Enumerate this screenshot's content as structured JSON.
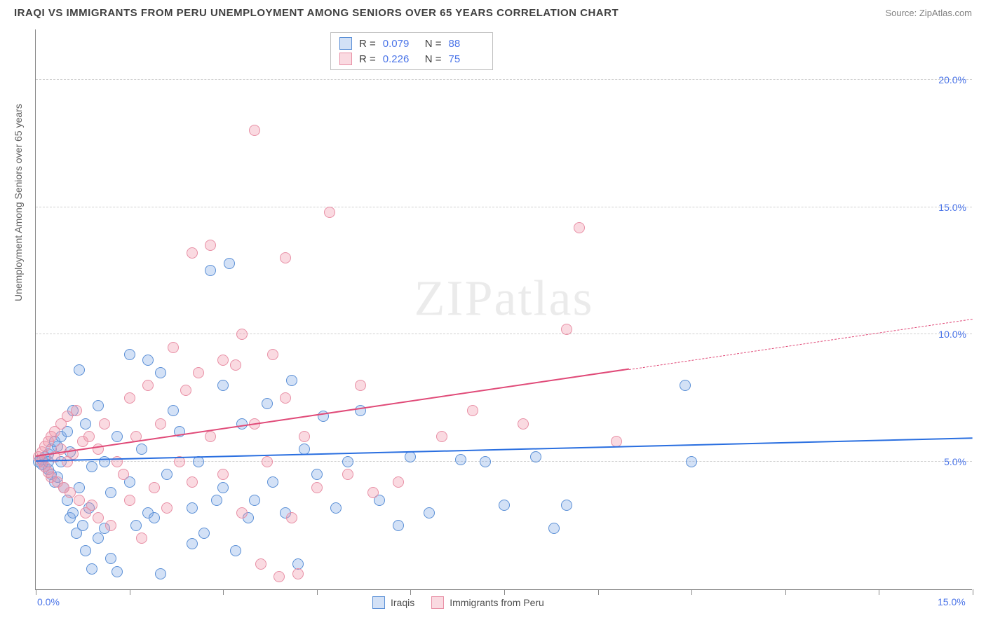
{
  "header": {
    "title": "IRAQI VS IMMIGRANTS FROM PERU UNEMPLOYMENT AMONG SENIORS OVER 65 YEARS CORRELATION CHART",
    "source": "Source: ZipAtlas.com"
  },
  "watermark": {
    "part1": "ZIP",
    "part2": "atlas"
  },
  "chart": {
    "type": "scatter",
    "background_color": "#ffffff",
    "grid_color": "#d0d0d0",
    "axis_color": "#888888",
    "tick_label_color": "#4a74e8",
    "y_axis_title": "Unemployment Among Seniors over 65 years",
    "xlim": [
      0,
      15
    ],
    "ylim": [
      0,
      22
    ],
    "x_ticks": [
      0,
      1.5,
      3,
      4.5,
      6,
      7.5,
      9,
      10.5,
      12,
      13.5,
      15
    ],
    "x_tick_labels": {
      "0": "0.0%",
      "15": "15.0%"
    },
    "y_ticks": [
      5,
      10,
      15,
      20
    ],
    "y_tick_labels": {
      "5": "5.0%",
      "10": "10.0%",
      "15": "15.0%",
      "20": "20.0%"
    },
    "marker_radius": 8,
    "marker_border_width": 1.5,
    "series": [
      {
        "name": "Iraqis",
        "fill_color": "rgba(130,170,230,0.35)",
        "stroke_color": "#5a8fd6",
        "trend_color": "#2a6fe0",
        "r_value": "0.079",
        "n_value": "88",
        "trend": {
          "x1": 0,
          "y1": 5.0,
          "x2": 15,
          "y2": 5.9,
          "solid_until_x": 15
        },
        "points": [
          [
            0.05,
            5.0
          ],
          [
            0.1,
            5.1
          ],
          [
            0.1,
            4.9
          ],
          [
            0.15,
            5.2
          ],
          [
            0.15,
            4.8
          ],
          [
            0.2,
            5.3
          ],
          [
            0.2,
            4.7
          ],
          [
            0.2,
            5.0
          ],
          [
            0.25,
            5.5
          ],
          [
            0.25,
            4.5
          ],
          [
            0.3,
            5.8
          ],
          [
            0.3,
            4.2
          ],
          [
            0.35,
            5.6
          ],
          [
            0.35,
            4.4
          ],
          [
            0.4,
            5.0
          ],
          [
            0.4,
            6.0
          ],
          [
            0.45,
            4.0
          ],
          [
            0.5,
            3.5
          ],
          [
            0.5,
            6.2
          ],
          [
            0.55,
            2.8
          ],
          [
            0.55,
            5.4
          ],
          [
            0.6,
            3.0
          ],
          [
            0.6,
            7.0
          ],
          [
            0.65,
            2.2
          ],
          [
            0.7,
            8.6
          ],
          [
            0.7,
            4.0
          ],
          [
            0.75,
            2.5
          ],
          [
            0.8,
            1.5
          ],
          [
            0.8,
            6.5
          ],
          [
            0.85,
            3.2
          ],
          [
            0.9,
            0.8
          ],
          [
            0.9,
            4.8
          ],
          [
            1.0,
            2.0
          ],
          [
            1.0,
            7.2
          ],
          [
            1.1,
            2.4
          ],
          [
            1.1,
            5.0
          ],
          [
            1.2,
            3.8
          ],
          [
            1.2,
            1.2
          ],
          [
            1.3,
            0.7
          ],
          [
            1.3,
            6.0
          ],
          [
            1.5,
            9.2
          ],
          [
            1.5,
            4.2
          ],
          [
            1.6,
            2.5
          ],
          [
            1.7,
            5.5
          ],
          [
            1.8,
            3.0
          ],
          [
            1.8,
            9.0
          ],
          [
            1.9,
            2.8
          ],
          [
            2.0,
            0.6
          ],
          [
            2.0,
            8.5
          ],
          [
            2.1,
            4.5
          ],
          [
            2.2,
            7.0
          ],
          [
            2.3,
            6.2
          ],
          [
            2.5,
            3.2
          ],
          [
            2.5,
            1.8
          ],
          [
            2.6,
            5.0
          ],
          [
            2.7,
            2.2
          ],
          [
            2.8,
            12.5
          ],
          [
            2.9,
            3.5
          ],
          [
            3.0,
            4.0
          ],
          [
            3.0,
            8.0
          ],
          [
            3.1,
            12.8
          ],
          [
            3.2,
            1.5
          ],
          [
            3.3,
            6.5
          ],
          [
            3.4,
            2.8
          ],
          [
            3.5,
            3.5
          ],
          [
            3.7,
            7.3
          ],
          [
            3.8,
            4.2
          ],
          [
            4.0,
            3.0
          ],
          [
            4.1,
            8.2
          ],
          [
            4.2,
            1.0
          ],
          [
            4.3,
            5.5
          ],
          [
            4.5,
            4.5
          ],
          [
            4.6,
            6.8
          ],
          [
            4.8,
            3.2
          ],
          [
            5.0,
            5.0
          ],
          [
            5.2,
            7.0
          ],
          [
            5.5,
            3.5
          ],
          [
            5.8,
            2.5
          ],
          [
            6.0,
            5.2
          ],
          [
            6.3,
            3.0
          ],
          [
            6.8,
            5.1
          ],
          [
            7.2,
            5.0
          ],
          [
            7.5,
            3.3
          ],
          [
            8.0,
            5.2
          ],
          [
            8.3,
            2.4
          ],
          [
            8.5,
            3.3
          ],
          [
            10.4,
            8.0
          ],
          [
            10.5,
            5.0
          ]
        ]
      },
      {
        "name": "Immigrants from Peru",
        "fill_color": "rgba(240,150,170,0.35)",
        "stroke_color": "#e88fa5",
        "trend_color": "#e04a78",
        "r_value": "0.226",
        "n_value": "75",
        "trend": {
          "x1": 0,
          "y1": 5.2,
          "x2": 15,
          "y2": 10.6,
          "solid_until_x": 9.5
        },
        "points": [
          [
            0.05,
            5.2
          ],
          [
            0.1,
            5.4
          ],
          [
            0.1,
            5.0
          ],
          [
            0.15,
            5.6
          ],
          [
            0.15,
            4.8
          ],
          [
            0.2,
            5.8
          ],
          [
            0.2,
            4.6
          ],
          [
            0.25,
            6.0
          ],
          [
            0.25,
            4.4
          ],
          [
            0.3,
            5.2
          ],
          [
            0.3,
            6.2
          ],
          [
            0.35,
            4.2
          ],
          [
            0.4,
            5.5
          ],
          [
            0.4,
            6.5
          ],
          [
            0.45,
            4.0
          ],
          [
            0.5,
            5.0
          ],
          [
            0.5,
            6.8
          ],
          [
            0.55,
            3.8
          ],
          [
            0.6,
            5.3
          ],
          [
            0.65,
            7.0
          ],
          [
            0.7,
            3.5
          ],
          [
            0.75,
            5.8
          ],
          [
            0.8,
            3.0
          ],
          [
            0.85,
            6.0
          ],
          [
            0.9,
            3.3
          ],
          [
            1.0,
            5.5
          ],
          [
            1.0,
            2.8
          ],
          [
            1.1,
            6.5
          ],
          [
            1.2,
            2.5
          ],
          [
            1.3,
            5.0
          ],
          [
            1.4,
            4.5
          ],
          [
            1.5,
            7.5
          ],
          [
            1.5,
            3.5
          ],
          [
            1.6,
            6.0
          ],
          [
            1.7,
            2.0
          ],
          [
            1.8,
            8.0
          ],
          [
            1.9,
            4.0
          ],
          [
            2.0,
            6.5
          ],
          [
            2.1,
            3.2
          ],
          [
            2.2,
            9.5
          ],
          [
            2.3,
            5.0
          ],
          [
            2.4,
            7.8
          ],
          [
            2.5,
            13.2
          ],
          [
            2.5,
            4.2
          ],
          [
            2.6,
            8.5
          ],
          [
            2.8,
            13.5
          ],
          [
            2.8,
            6.0
          ],
          [
            3.0,
            9.0
          ],
          [
            3.0,
            4.5
          ],
          [
            3.2,
            8.8
          ],
          [
            3.3,
            10.0
          ],
          [
            3.3,
            3.0
          ],
          [
            3.5,
            18.0
          ],
          [
            3.5,
            6.5
          ],
          [
            3.6,
            1.0
          ],
          [
            3.7,
            5.0
          ],
          [
            3.8,
            9.2
          ],
          [
            3.9,
            0.5
          ],
          [
            4.0,
            7.5
          ],
          [
            4.0,
            13.0
          ],
          [
            4.1,
            2.8
          ],
          [
            4.2,
            0.6
          ],
          [
            4.3,
            6.0
          ],
          [
            4.5,
            4.0
          ],
          [
            4.7,
            14.8
          ],
          [
            5.0,
            4.5
          ],
          [
            5.2,
            8.0
          ],
          [
            5.4,
            3.8
          ],
          [
            5.8,
            4.2
          ],
          [
            6.5,
            6.0
          ],
          [
            7.0,
            7.0
          ],
          [
            7.8,
            6.5
          ],
          [
            8.5,
            10.2
          ],
          [
            8.7,
            14.2
          ],
          [
            9.3,
            5.8
          ]
        ]
      }
    ],
    "bottom_legend": [
      {
        "label": "Iraqis",
        "fill": "rgba(130,170,230,0.35)",
        "stroke": "#5a8fd6"
      },
      {
        "label": "Immigrants from Peru",
        "fill": "rgba(240,150,170,0.35)",
        "stroke": "#e88fa5"
      }
    ]
  }
}
